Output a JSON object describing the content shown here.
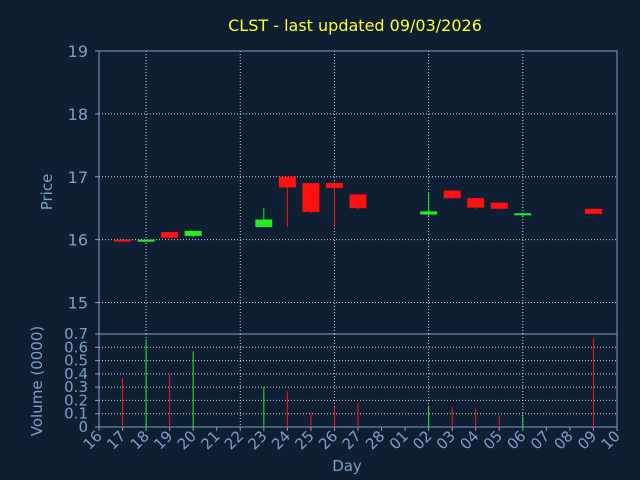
{
  "title": "CLST - last updated 09/03/2026",
  "colors": {
    "background": "#0f1f33",
    "title": "#ffff33",
    "axis": "#7f9fc8",
    "frame": "#ffffff",
    "grid": "#ffffff",
    "up": "#22ee22",
    "down": "#ff1111"
  },
  "chart_data": [
    {
      "type": "candlestick",
      "ylabel": "Price",
      "ylim": [
        14.5,
        19
      ],
      "yticks": [
        15,
        16,
        17,
        18,
        19
      ],
      "grid": true,
      "x_ticks": [
        "16",
        "17",
        "18",
        "19",
        "20",
        "21",
        "22",
        "23",
        "24",
        "25",
        "26",
        "27",
        "28",
        "01",
        "02",
        "03",
        "04",
        "05",
        "06",
        "07",
        "08",
        "09",
        "10"
      ],
      "candles": [
        {
          "day": "17",
          "open": 16.0,
          "high": 16.0,
          "low": 15.98,
          "close": 15.98
        },
        {
          "day": "18",
          "open": 15.98,
          "high": 16.0,
          "low": 15.96,
          "close": 16.0
        },
        {
          "day": "19",
          "open": 16.12,
          "high": 16.12,
          "low": 16.02,
          "close": 16.03
        },
        {
          "day": "20",
          "open": 16.06,
          "high": 16.14,
          "low": 16.04,
          "close": 16.14
        },
        {
          "day": "23",
          "open": 16.2,
          "high": 16.5,
          "low": 16.2,
          "close": 16.32
        },
        {
          "day": "24",
          "open": 17.0,
          "high": 17.0,
          "low": 16.2,
          "close": 16.83
        },
        {
          "day": "25",
          "open": 16.9,
          "high": 16.9,
          "low": 16.42,
          "close": 16.44
        },
        {
          "day": "26",
          "open": 16.9,
          "high": 16.92,
          "low": 16.2,
          "close": 16.82
        },
        {
          "day": "27",
          "open": 16.72,
          "high": 16.72,
          "low": 16.48,
          "close": 16.5
        },
        {
          "day": "02",
          "open": 16.4,
          "high": 16.75,
          "low": 16.38,
          "close": 16.45
        },
        {
          "day": "03",
          "open": 16.78,
          "high": 16.78,
          "low": 16.65,
          "close": 16.66
        },
        {
          "day": "04",
          "open": 16.66,
          "high": 16.66,
          "low": 16.49,
          "close": 16.51
        },
        {
          "day": "05",
          "open": 16.59,
          "high": 16.59,
          "low": 16.48,
          "close": 16.49
        },
        {
          "day": "06",
          "open": 16.39,
          "high": 16.42,
          "low": 16.38,
          "close": 16.42
        },
        {
          "day": "09",
          "open": 16.49,
          "high": 16.49,
          "low": 16.4,
          "close": 16.41
        }
      ]
    },
    {
      "type": "bar",
      "ylabel": "Volume (0000)",
      "xlabel": "Day",
      "ylim": [
        0,
        0.7
      ],
      "yticks": [
        "0",
        "0.1",
        "0.2",
        "0.3",
        "0.4",
        "0.5",
        "0.6",
        "0.7"
      ],
      "grid": true,
      "bars": [
        {
          "day": "17",
          "value": 0.37,
          "dir": "down"
        },
        {
          "day": "18",
          "value": 0.66,
          "dir": "up"
        },
        {
          "day": "19",
          "value": 0.4,
          "dir": "down"
        },
        {
          "day": "20",
          "value": 0.57,
          "dir": "up"
        },
        {
          "day": "23",
          "value": 0.3,
          "dir": "up"
        },
        {
          "day": "24",
          "value": 0.27,
          "dir": "down"
        },
        {
          "day": "25",
          "value": 0.11,
          "dir": "down"
        },
        {
          "day": "26",
          "value": 0.15,
          "dir": "down"
        },
        {
          "day": "27",
          "value": 0.18,
          "dir": "down"
        },
        {
          "day": "02",
          "value": 0.16,
          "dir": "up"
        },
        {
          "day": "03",
          "value": 0.15,
          "dir": "down"
        },
        {
          "day": "04",
          "value": 0.14,
          "dir": "down"
        },
        {
          "day": "05",
          "value": 0.09,
          "dir": "down"
        },
        {
          "day": "06",
          "value": 0.08,
          "dir": "up"
        },
        {
          "day": "09",
          "value": 0.67,
          "dir": "down"
        }
      ]
    }
  ]
}
